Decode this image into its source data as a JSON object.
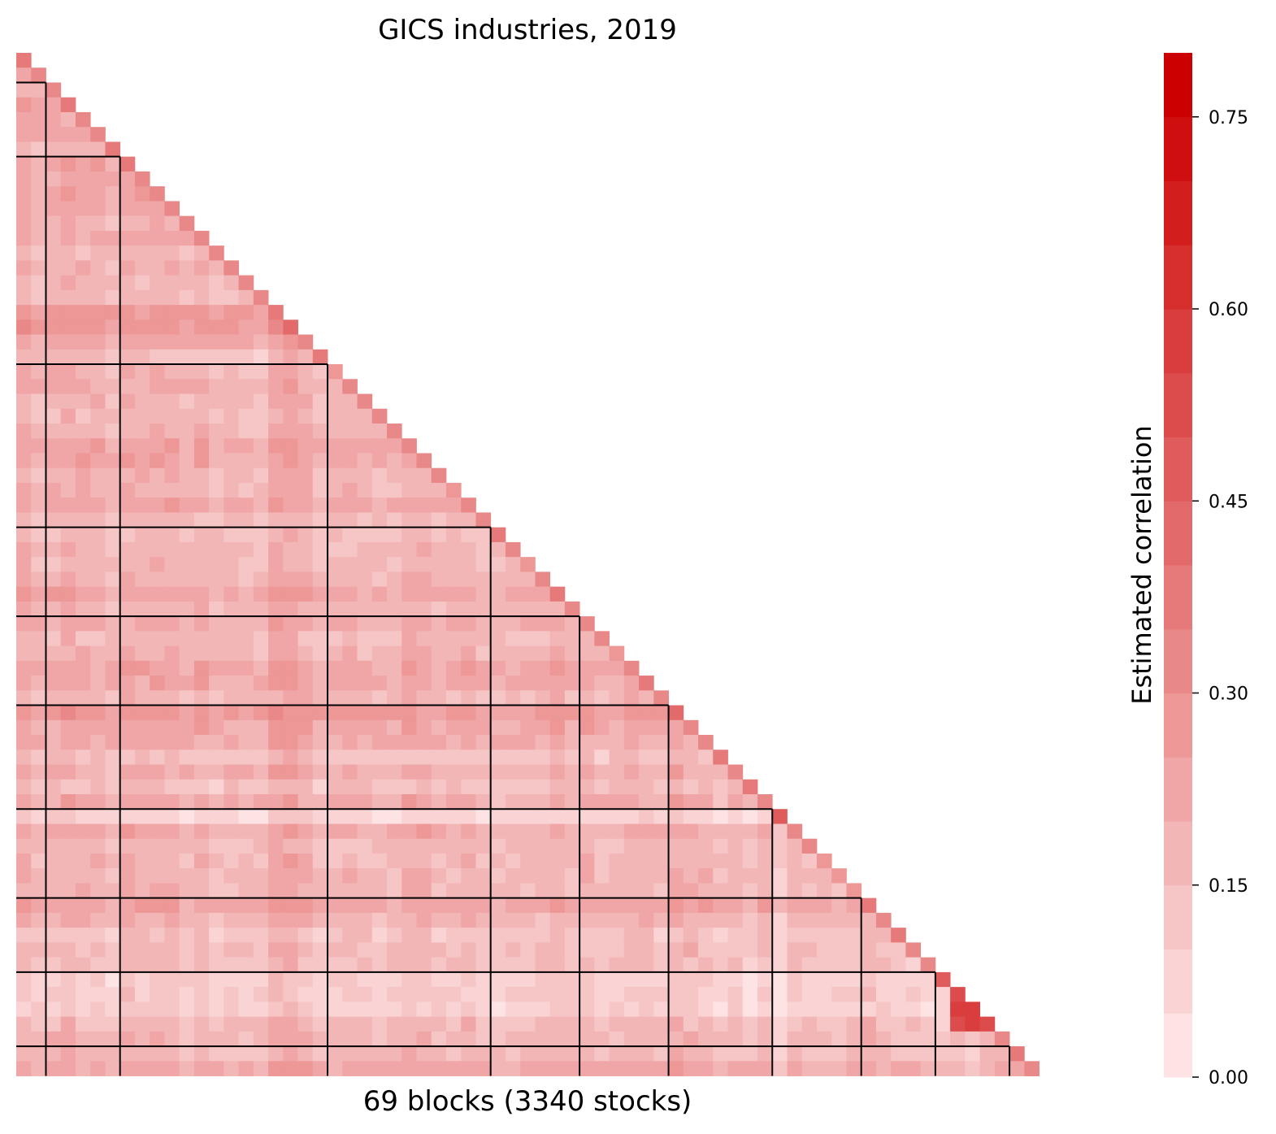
{
  "chart_data": {
    "type": "heatmap",
    "title": "GICS industries, 2019",
    "xlabel": "69 blocks (3340 stocks)",
    "colorbar": {
      "label": "Estimated correlation",
      "range": [
        0.0,
        0.8
      ],
      "ticks": [
        "0.00",
        "0.15",
        "0.30",
        "0.45",
        "0.60",
        "0.75"
      ],
      "tick_values": [
        0.0,
        0.15,
        0.3,
        0.45,
        0.6,
        0.75
      ],
      "levels": 16,
      "color_low": "#fde3e3",
      "color_high": "#cc0000"
    },
    "n_blocks": 69,
    "n_stocks": 3340,
    "mask": "lower-triangle",
    "sector_boundaries": [
      2,
      7,
      21,
      32,
      38,
      44,
      51,
      57,
      62,
      67
    ],
    "typical_correlation": 0.18
  }
}
